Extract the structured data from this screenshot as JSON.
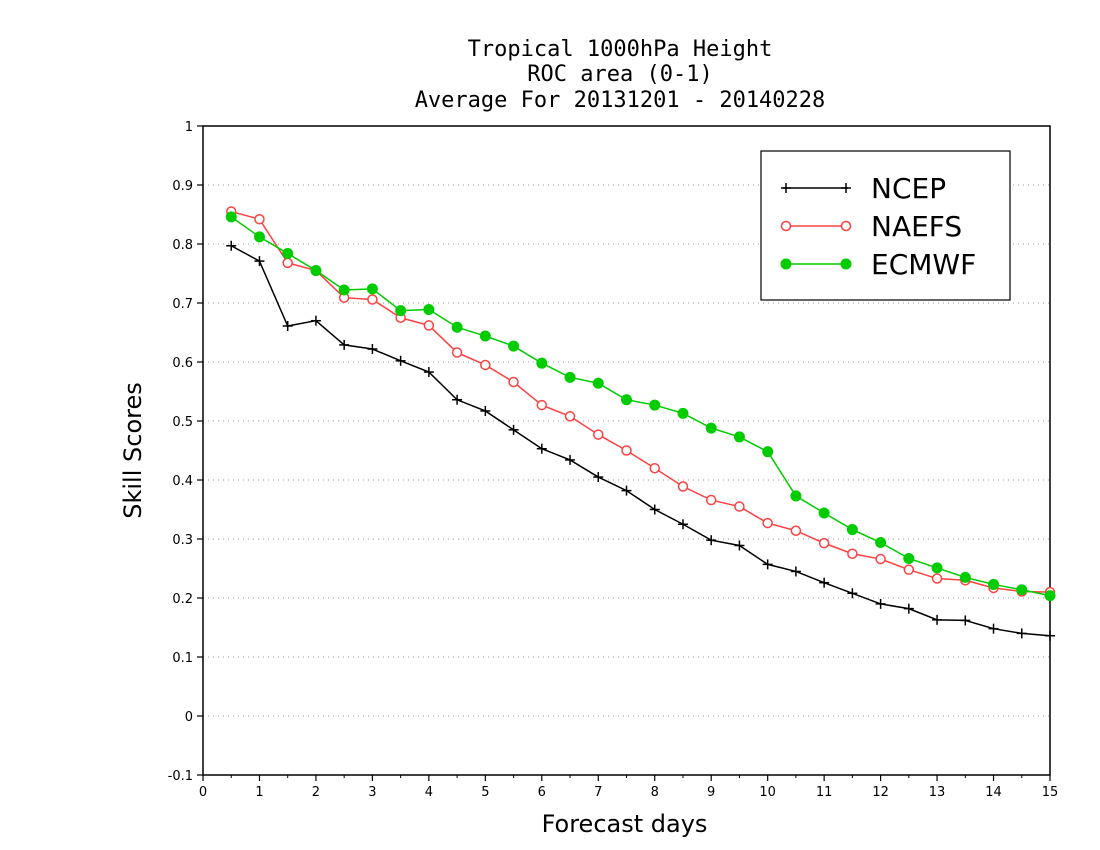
{
  "chart_data": {
    "type": "line",
    "title": [
      "Tropical 1000hPa Height",
      "ROC area (0-1)",
      "Average For 20131201 - 20140228"
    ],
    "xlabel": "Forecast days",
    "ylabel": "Skill Scores",
    "xlim": [
      0,
      15
    ],
    "ylim": [
      -0.1,
      1
    ],
    "xticks": [
      0,
      1,
      2,
      3,
      4,
      5,
      6,
      7,
      8,
      9,
      10,
      11,
      12,
      13,
      14,
      15
    ],
    "yticks": [
      -0.1,
      0,
      0.1,
      0.2,
      0.3,
      0.4,
      0.5,
      0.6,
      0.7,
      0.8,
      0.9,
      1
    ],
    "ytick_labels": [
      "-0.1",
      "0",
      "0.1",
      "0.2",
      "0.3",
      "0.4",
      "0.5",
      "0.6",
      "0.7",
      "0.8",
      "0.9",
      "1"
    ],
    "grid": "horizontal-dotted",
    "legend_position": "top-right",
    "x": [
      0.5,
      1,
      1.5,
      2,
      2.5,
      3,
      3.5,
      4,
      4.5,
      5,
      5.5,
      6,
      6.5,
      7,
      7.5,
      8,
      8.5,
      9,
      9.5,
      10,
      10.5,
      11,
      11.5,
      12,
      12.5,
      13,
      13.5,
      14,
      14.5,
      15
    ],
    "series": [
      {
        "name": "NCEP",
        "color": "#000000",
        "marker": "plus",
        "values": [
          0.797,
          0.771,
          0.661,
          0.67,
          0.629,
          0.622,
          0.602,
          0.583,
          0.536,
          0.517,
          0.485,
          0.453,
          0.434,
          0.405,
          0.382,
          0.35,
          0.325,
          0.298,
          0.289,
          0.257,
          0.245,
          0.226,
          0.208,
          0.19,
          0.182,
          0.163,
          0.162,
          0.148,
          0.14,
          0.136
        ]
      },
      {
        "name": "NAEFS",
        "color": "#ff4040",
        "marker": "open-circle",
        "values": [
          0.855,
          0.842,
          0.768,
          0.755,
          0.709,
          0.706,
          0.675,
          0.662,
          0.616,
          0.595,
          0.566,
          0.527,
          0.508,
          0.477,
          0.45,
          0.42,
          0.389,
          0.366,
          0.355,
          0.327,
          0.314,
          0.293,
          0.275,
          0.266,
          0.248,
          0.233,
          0.23,
          0.217,
          0.211,
          0.21
        ]
      },
      {
        "name": "ECMWF",
        "color": "#00cc00",
        "marker": "filled-circle",
        "values": [
          0.846,
          0.812,
          0.784,
          0.755,
          0.722,
          0.724,
          0.687,
          0.689,
          0.659,
          0.644,
          0.627,
          0.598,
          0.574,
          0.564,
          0.536,
          0.527,
          0.513,
          0.488,
          0.473,
          0.448,
          0.373,
          0.344,
          0.316,
          0.294,
          0.267,
          0.251,
          0.235,
          0.223,
          0.214,
          0.204
        ]
      }
    ]
  }
}
